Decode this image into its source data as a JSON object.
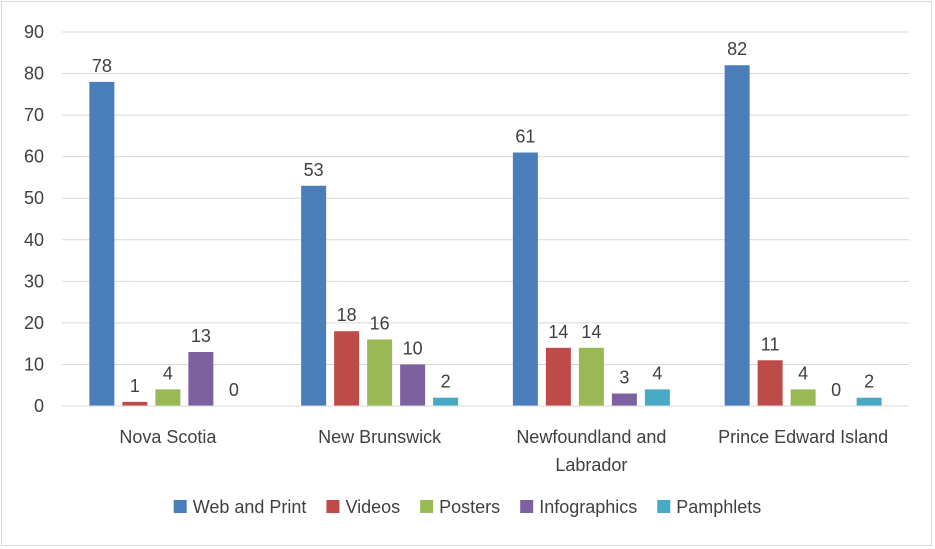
{
  "chart_data": {
    "type": "bar",
    "categories": [
      "Nova Scotia",
      "New Brunswick",
      "Newfoundland and Labrador",
      "Prince Edward Island"
    ],
    "category_lines": [
      [
        "Nova Scotia"
      ],
      [
        "New Brunswick"
      ],
      [
        "Newfoundland and",
        "Labrador"
      ],
      [
        "Prince Edward Island"
      ]
    ],
    "series": [
      {
        "name": "Web and Print",
        "color": "#4a7ebb",
        "values": [
          78,
          53,
          61,
          82
        ]
      },
      {
        "name": "Videos",
        "color": "#be4b48",
        "values": [
          1,
          18,
          14,
          11
        ]
      },
      {
        "name": "Posters",
        "color": "#98b954",
        "values": [
          4,
          16,
          14,
          4
        ]
      },
      {
        "name": "Infographics",
        "color": "#7d60a0",
        "values": [
          13,
          10,
          3,
          0
        ]
      },
      {
        "name": "Pamphlets",
        "color": "#46aac5",
        "values": [
          0,
          2,
          4,
          2
        ]
      }
    ],
    "ylim": [
      0,
      90
    ],
    "yticks": [
      0,
      10,
      20,
      30,
      40,
      50,
      60,
      70,
      80,
      90
    ],
    "grid": true,
    "legend": "bottom",
    "title": "",
    "xlabel": "",
    "ylabel": ""
  }
}
